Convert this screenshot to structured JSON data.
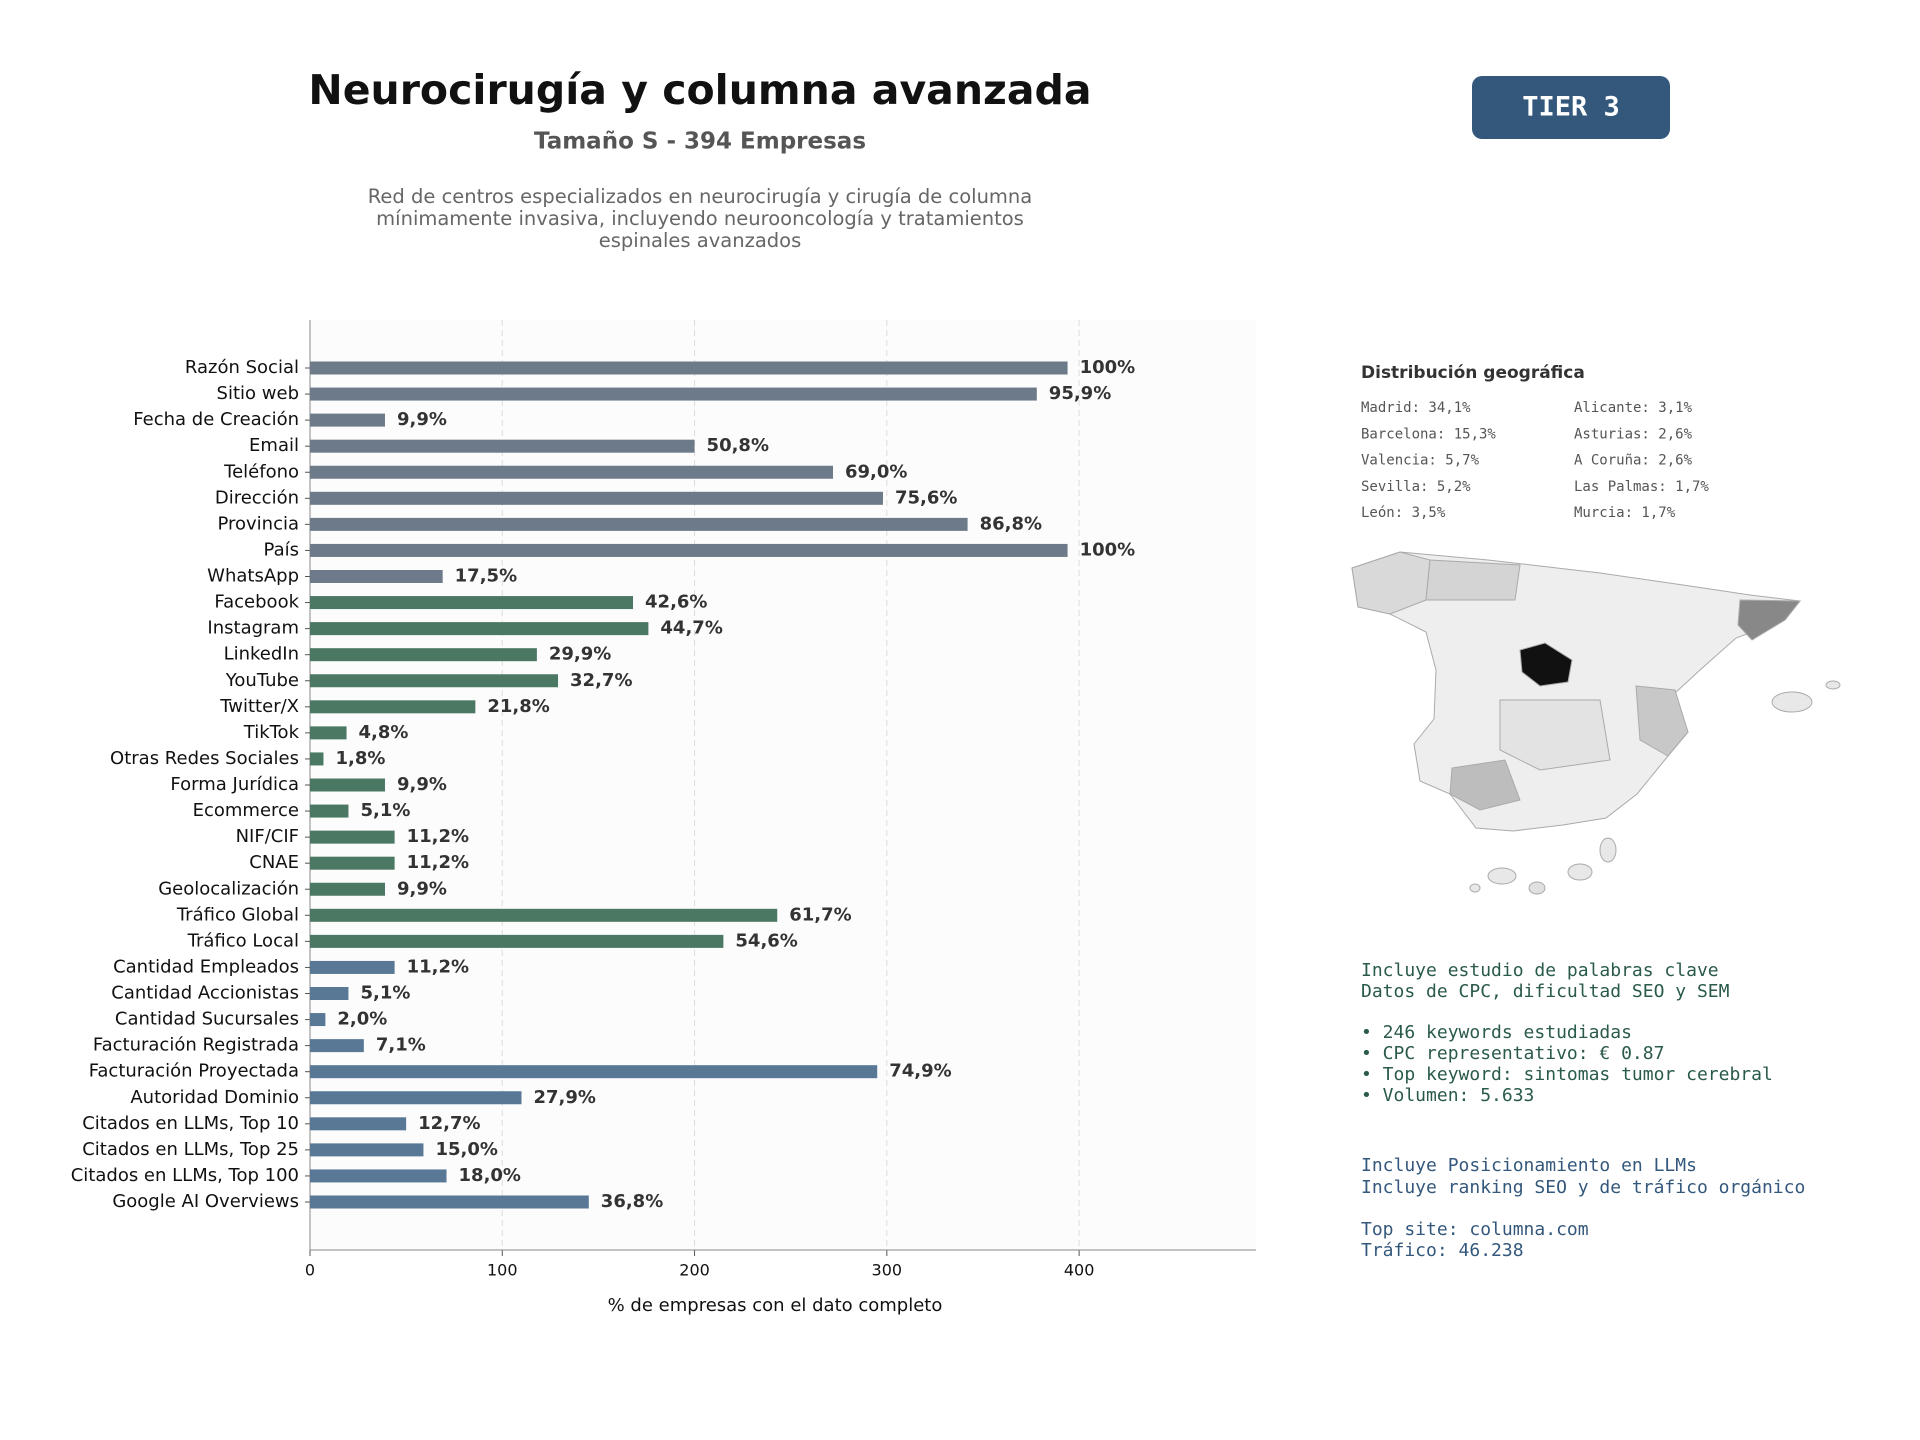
{
  "chart_data": {
    "type": "barh",
    "title": "Neurocirugía y columna avanzada",
    "subtitle": "Tamaño S - 394 Empresas",
    "description": "Red de centros especializados en neurocirugía y cirugía de columna mínimamente invasiva, incluyendo neurooncología y tratamientos espinales avanzados",
    "xlabel": "% de empresas con el dato completo",
    "categories": [
      "Razón Social",
      "Sitio web",
      "Fecha de Creación",
      "Email",
      "Teléfono",
      "Dirección",
      "Provincia",
      "País",
      "WhatsApp",
      "Facebook",
      "Instagram",
      "LinkedIn",
      "YouTube",
      "Twitter/X",
      "TikTok",
      "Otras Redes Sociales",
      "Forma Jurídica",
      "Ecommerce",
      "NIF/CIF",
      "CNAE",
      "Geolocalización",
      "Tráfico Global",
      "Tráfico Local",
      "Cantidad Empleados",
      "Cantidad Accionistas",
      "Cantidad Sucursales",
      "Facturación Registrada",
      "Facturación Proyectada",
      "Autoridad Dominio",
      "Citados en LLMs, Top 10",
      "Citados en LLMs, Top 25",
      "Citados en LLMs, Top 100",
      "Google AI Overviews"
    ],
    "values": [
      394,
      378,
      39,
      200,
      272,
      298,
      342,
      394,
      69,
      168,
      176,
      118,
      129,
      86,
      19,
      7,
      39,
      20,
      44,
      44,
      39,
      243,
      215,
      44,
      20,
      8,
      28,
      295,
      110,
      50,
      59,
      71,
      145
    ],
    "value_labels": [
      "100%",
      "95,9%",
      "9,9%",
      "50,8%",
      "69,0%",
      "75,6%",
      "86,8%",
      "100%",
      "17,5%",
      "42,6%",
      "44,7%",
      "29,9%",
      "32,7%",
      "21,8%",
      "4,8%",
      "1,8%",
      "9,9%",
      "5,1%",
      "11,2%",
      "11,2%",
      "9,9%",
      "61,7%",
      "54,6%",
      "11,2%",
      "5,1%",
      "2,0%",
      "7,1%",
      "74,9%",
      "27,9%",
      "12,7%",
      "15,0%",
      "18,0%",
      "36,8%"
    ],
    "colors": [
      "#6c7a89",
      "#6c7a89",
      "#6c7a89",
      "#6c7a89",
      "#6c7a89",
      "#6c7a89",
      "#6c7a89",
      "#6c7a89",
      "#6c7a89",
      "#4a7863",
      "#4a7863",
      "#4a7863",
      "#4a7863",
      "#4a7863",
      "#4a7863",
      "#4a7863",
      "#4a7863",
      "#4a7863",
      "#4a7863",
      "#4a7863",
      "#4a7863",
      "#4a7863",
      "#4a7863",
      "#587896",
      "#587896",
      "#587896",
      "#587896",
      "#587896",
      "#587896",
      "#587896",
      "#587896",
      "#587896",
      "#587896"
    ],
    "xlim": [
      0,
      492
    ],
    "xticks": [
      0,
      100,
      200,
      300,
      400
    ],
    "grid": true
  },
  "badge": "TIER 3",
  "geo": {
    "title": "Distribución geográfica",
    "items": [
      "Madrid: 34,1%",
      "Barcelona: 15,3%",
      "Valencia: 5,7%",
      "Sevilla: 5,2%",
      "León: 3,5%",
      "Alicante: 3,1%",
      "Asturias: 2,6%",
      "A Coruña: 2,6%",
      "Las Palmas: 1,7%",
      "Murcia: 1,7%"
    ]
  },
  "keywords": {
    "lines": [
      "Incluye estudio de palabras clave",
      "Datos de CPC, dificultad SEO y SEM",
      "• 246 keywords estudiadas",
      "• CPC representativo: € 0.87",
      "• Top keyword: sintomas tumor cerebral",
      "• Volumen: 5.633"
    ]
  },
  "llm": {
    "lines": [
      "Incluye Posicionamiento en LLMs",
      "Incluye ranking SEO y de tráfico orgánico",
      "Top site: columna.com",
      "Tráfico: 46.238"
    ]
  }
}
